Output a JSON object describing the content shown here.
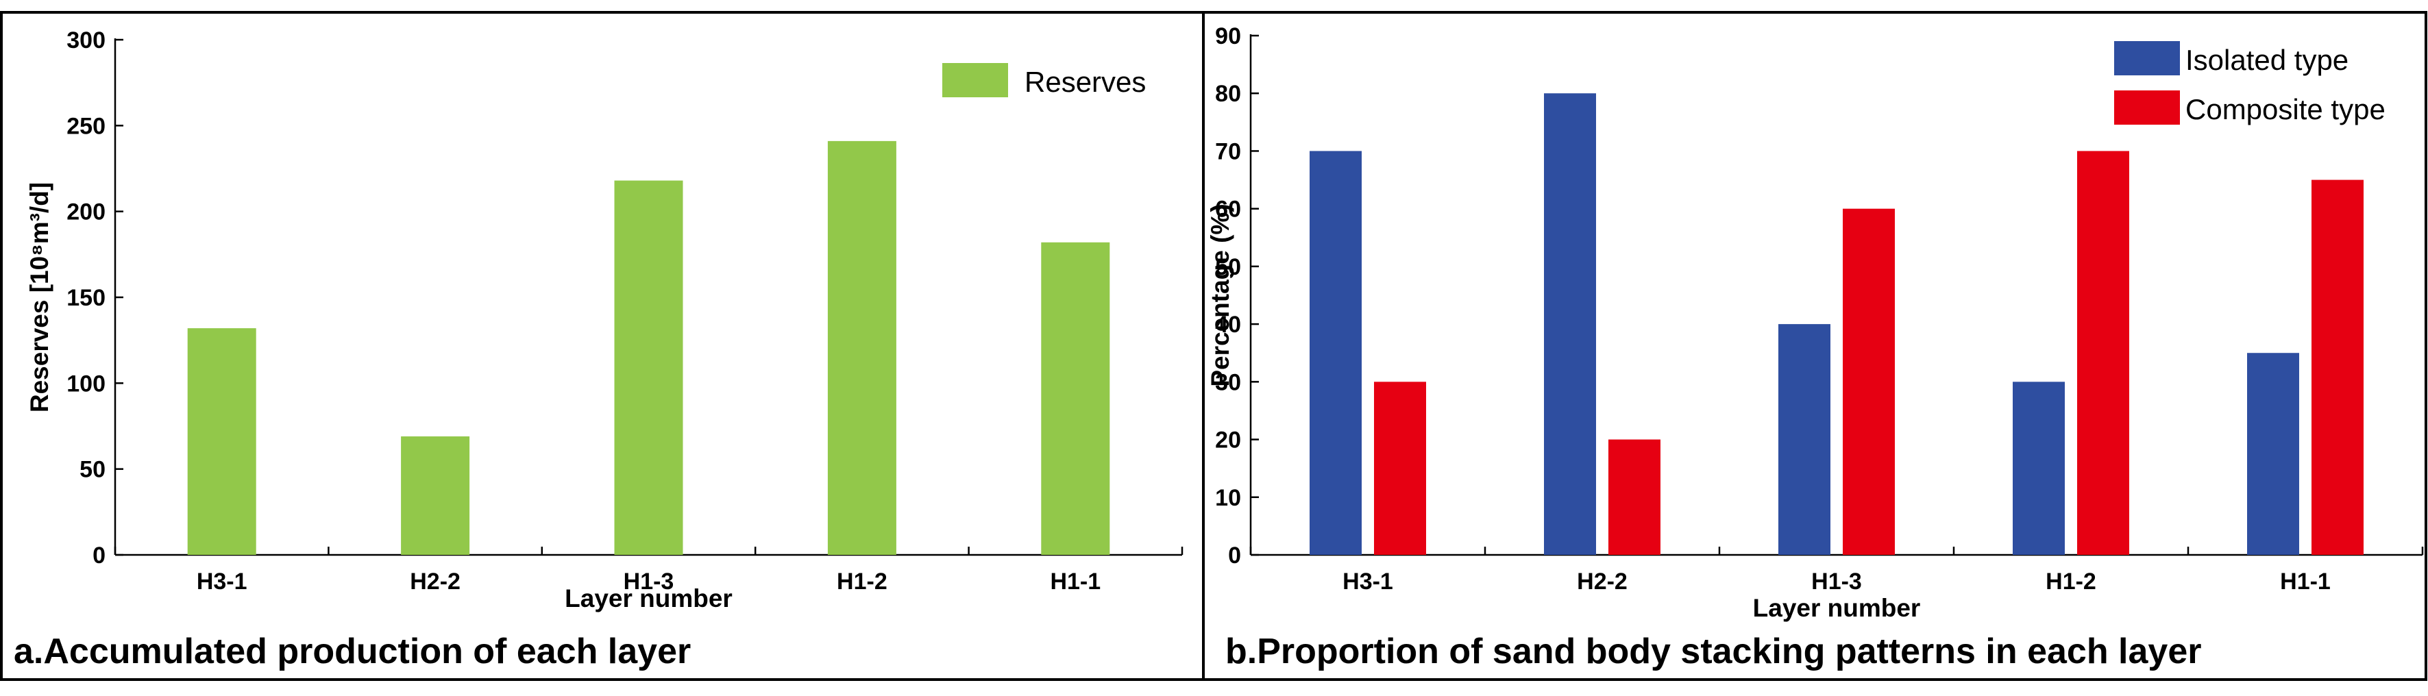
{
  "chart_data": [
    {
      "type": "bar",
      "caption": "a.Accumulated production of each layer",
      "categories": [
        "H3-1",
        "H2-2",
        "H1-3",
        "H1-2",
        "H1-1"
      ],
      "series": [
        {
          "name": "Reserves",
          "color": "#92C84A",
          "values": [
            132,
            69,
            218,
            241,
            182
          ]
        }
      ],
      "xlabel": "Layer number",
      "ylabel": "Reserves [10⁸m³/d]",
      "ylim": [
        0,
        300
      ],
      "yticks": [
        0,
        50,
        100,
        150,
        200,
        250,
        300
      ],
      "legend": "top-right",
      "grid": false
    },
    {
      "type": "bar",
      "caption": "b.Proportion of sand body stacking patterns in each layer",
      "categories": [
        "H3-1",
        "H2-2",
        "H1-3",
        "H1-2",
        "H1-1"
      ],
      "series": [
        {
          "name": "Isolated type",
          "color": "#2E4EA0",
          "values": [
            70,
            80,
            40,
            30,
            35
          ]
        },
        {
          "name": "Composite type",
          "color": "#E60012",
          "values": [
            30,
            20,
            60,
            70,
            65
          ]
        }
      ],
      "xlabel": "Layer number",
      "ylabel": "Percentage (%)",
      "ylim": [
        0,
        90
      ],
      "yticks": [
        0,
        10,
        20,
        30,
        40,
        50,
        60,
        70,
        80,
        90
      ],
      "legend": "top-right",
      "grid": false
    }
  ]
}
